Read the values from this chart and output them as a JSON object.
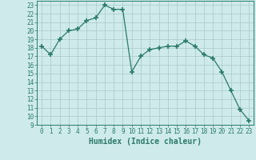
{
  "x": [
    0,
    1,
    2,
    3,
    4,
    5,
    6,
    7,
    8,
    9,
    10,
    11,
    12,
    13,
    14,
    15,
    16,
    17,
    18,
    19,
    20,
    21,
    22,
    23
  ],
  "y": [
    18.2,
    17.2,
    19.0,
    20.0,
    20.2,
    21.2,
    21.5,
    23.0,
    22.5,
    22.5,
    15.2,
    17.0,
    17.8,
    18.0,
    18.2,
    18.2,
    18.8,
    18.2,
    17.2,
    16.8,
    15.2,
    13.0,
    10.8,
    9.5
  ],
  "line_color": "#2a7a6a",
  "marker": "+",
  "marker_size": 4,
  "marker_lw": 1.2,
  "bg_color": "#ceeaea",
  "grid_color": "#a8c8c8",
  "tick_color": "#2a7a6a",
  "xlabel": "Humidex (Indice chaleur)",
  "xlim": [
    -0.5,
    23.5
  ],
  "ylim": [
    9,
    23.5
  ],
  "yticks": [
    9,
    10,
    11,
    12,
    13,
    14,
    15,
    16,
    17,
    18,
    19,
    20,
    21,
    22,
    23
  ],
  "xticks": [
    0,
    1,
    2,
    3,
    4,
    5,
    6,
    7,
    8,
    9,
    10,
    11,
    12,
    13,
    14,
    15,
    16,
    17,
    18,
    19,
    20,
    21,
    22,
    23
  ],
  "label_fontsize": 7,
  "tick_fontsize": 5.5
}
